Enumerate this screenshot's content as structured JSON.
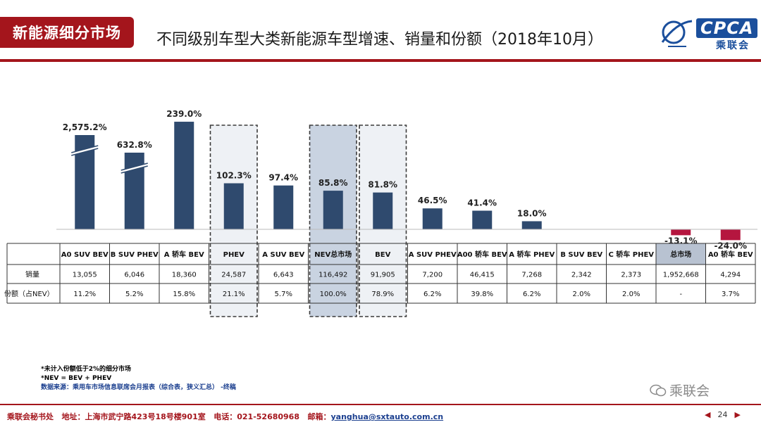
{
  "header": {
    "section_label": "新能源细分市场",
    "title": "不同级别车型大类新能源车型增速、销量和份额（2018年10月）",
    "logo_text": "CPCA",
    "logo_sub": "乘联会"
  },
  "colors": {
    "accent": "#a4151c",
    "bar_positive": "#2f4a6e",
    "bar_negative": "#b5163f",
    "highlight_nev": "#c9d3e1",
    "highlight_light": "#eef1f5",
    "total_market_cell": "#b8c2d1",
    "link": "#1b3f8f"
  },
  "chart_data": {
    "type": "bar",
    "title": "",
    "xlabel": "",
    "ylabel": "",
    "categories": [
      "A0 SUV BEV",
      "B SUV PHEV",
      "A 轿车 BEV",
      "PHEV",
      "A SUV BEV",
      "NEV总市场",
      "BEV",
      "A SUV PHEV",
      "A00 轿车 BEV",
      "A 轿车 PHEV",
      "B SUV BEV",
      "C 轿车 PHEV",
      "总市场",
      "A0 轿车 BEV"
    ],
    "growth": [
      2575.2,
      632.8,
      239.0,
      102.3,
      97.4,
      85.8,
      81.8,
      46.5,
      41.4,
      18.0,
      null,
      null,
      -13.1,
      -24.0
    ],
    "growth_labels": [
      "2,575.2%",
      "632.8%",
      "239.0%",
      "102.3%",
      "97.4%",
      "85.8%",
      "81.8%",
      "46.5%",
      "41.4%",
      "18.0%",
      "",
      "",
      "-13.1%",
      "-24.0%"
    ],
    "axis_breaks": [
      "A0 SUV BEV",
      "B SUV PHEV"
    ],
    "boxed_categories": [
      "PHEV",
      "NEV总市场",
      "BEV"
    ],
    "shaded_categories": [
      "NEV总市场"
    ],
    "header_shaded_categories": [
      "总市场"
    ],
    "rows": [
      {
        "label": "销量",
        "values": [
          "13,055",
          "6,046",
          "18,360",
          "24,587",
          "6,643",
          "116,492",
          "91,905",
          "7,200",
          "46,415",
          "7,268",
          "2,342",
          "2,373",
          "1,952,668",
          "4,294"
        ]
      },
      {
        "label": "份额（占NEV）",
        "values": [
          "11.2%",
          "5.2%",
          "15.8%",
          "21.1%",
          "5.7%",
          "100.0%",
          "78.9%",
          "6.2%",
          "39.8%",
          "6.2%",
          "2.0%",
          "2.0%",
          "-",
          "3.7%"
        ]
      }
    ],
    "grid": false,
    "legend": "none"
  },
  "notes": {
    "line1": "*未计入份额低于2%的细分市场",
    "line2": "*NEV = BEV + PHEV",
    "line3": "数据来源：乘用车市场信息联席会月报表（综合表，狭义汇总） -终稿"
  },
  "watermark": "乘联会",
  "footer": {
    "org": "乘联会秘书处",
    "address": "地址：上海市武宁路423号18号楼901室",
    "phone": "电话：021-52680968",
    "email_label": "邮箱：",
    "email": "yanghua@sxtauto.com.cn",
    "page": "24"
  }
}
